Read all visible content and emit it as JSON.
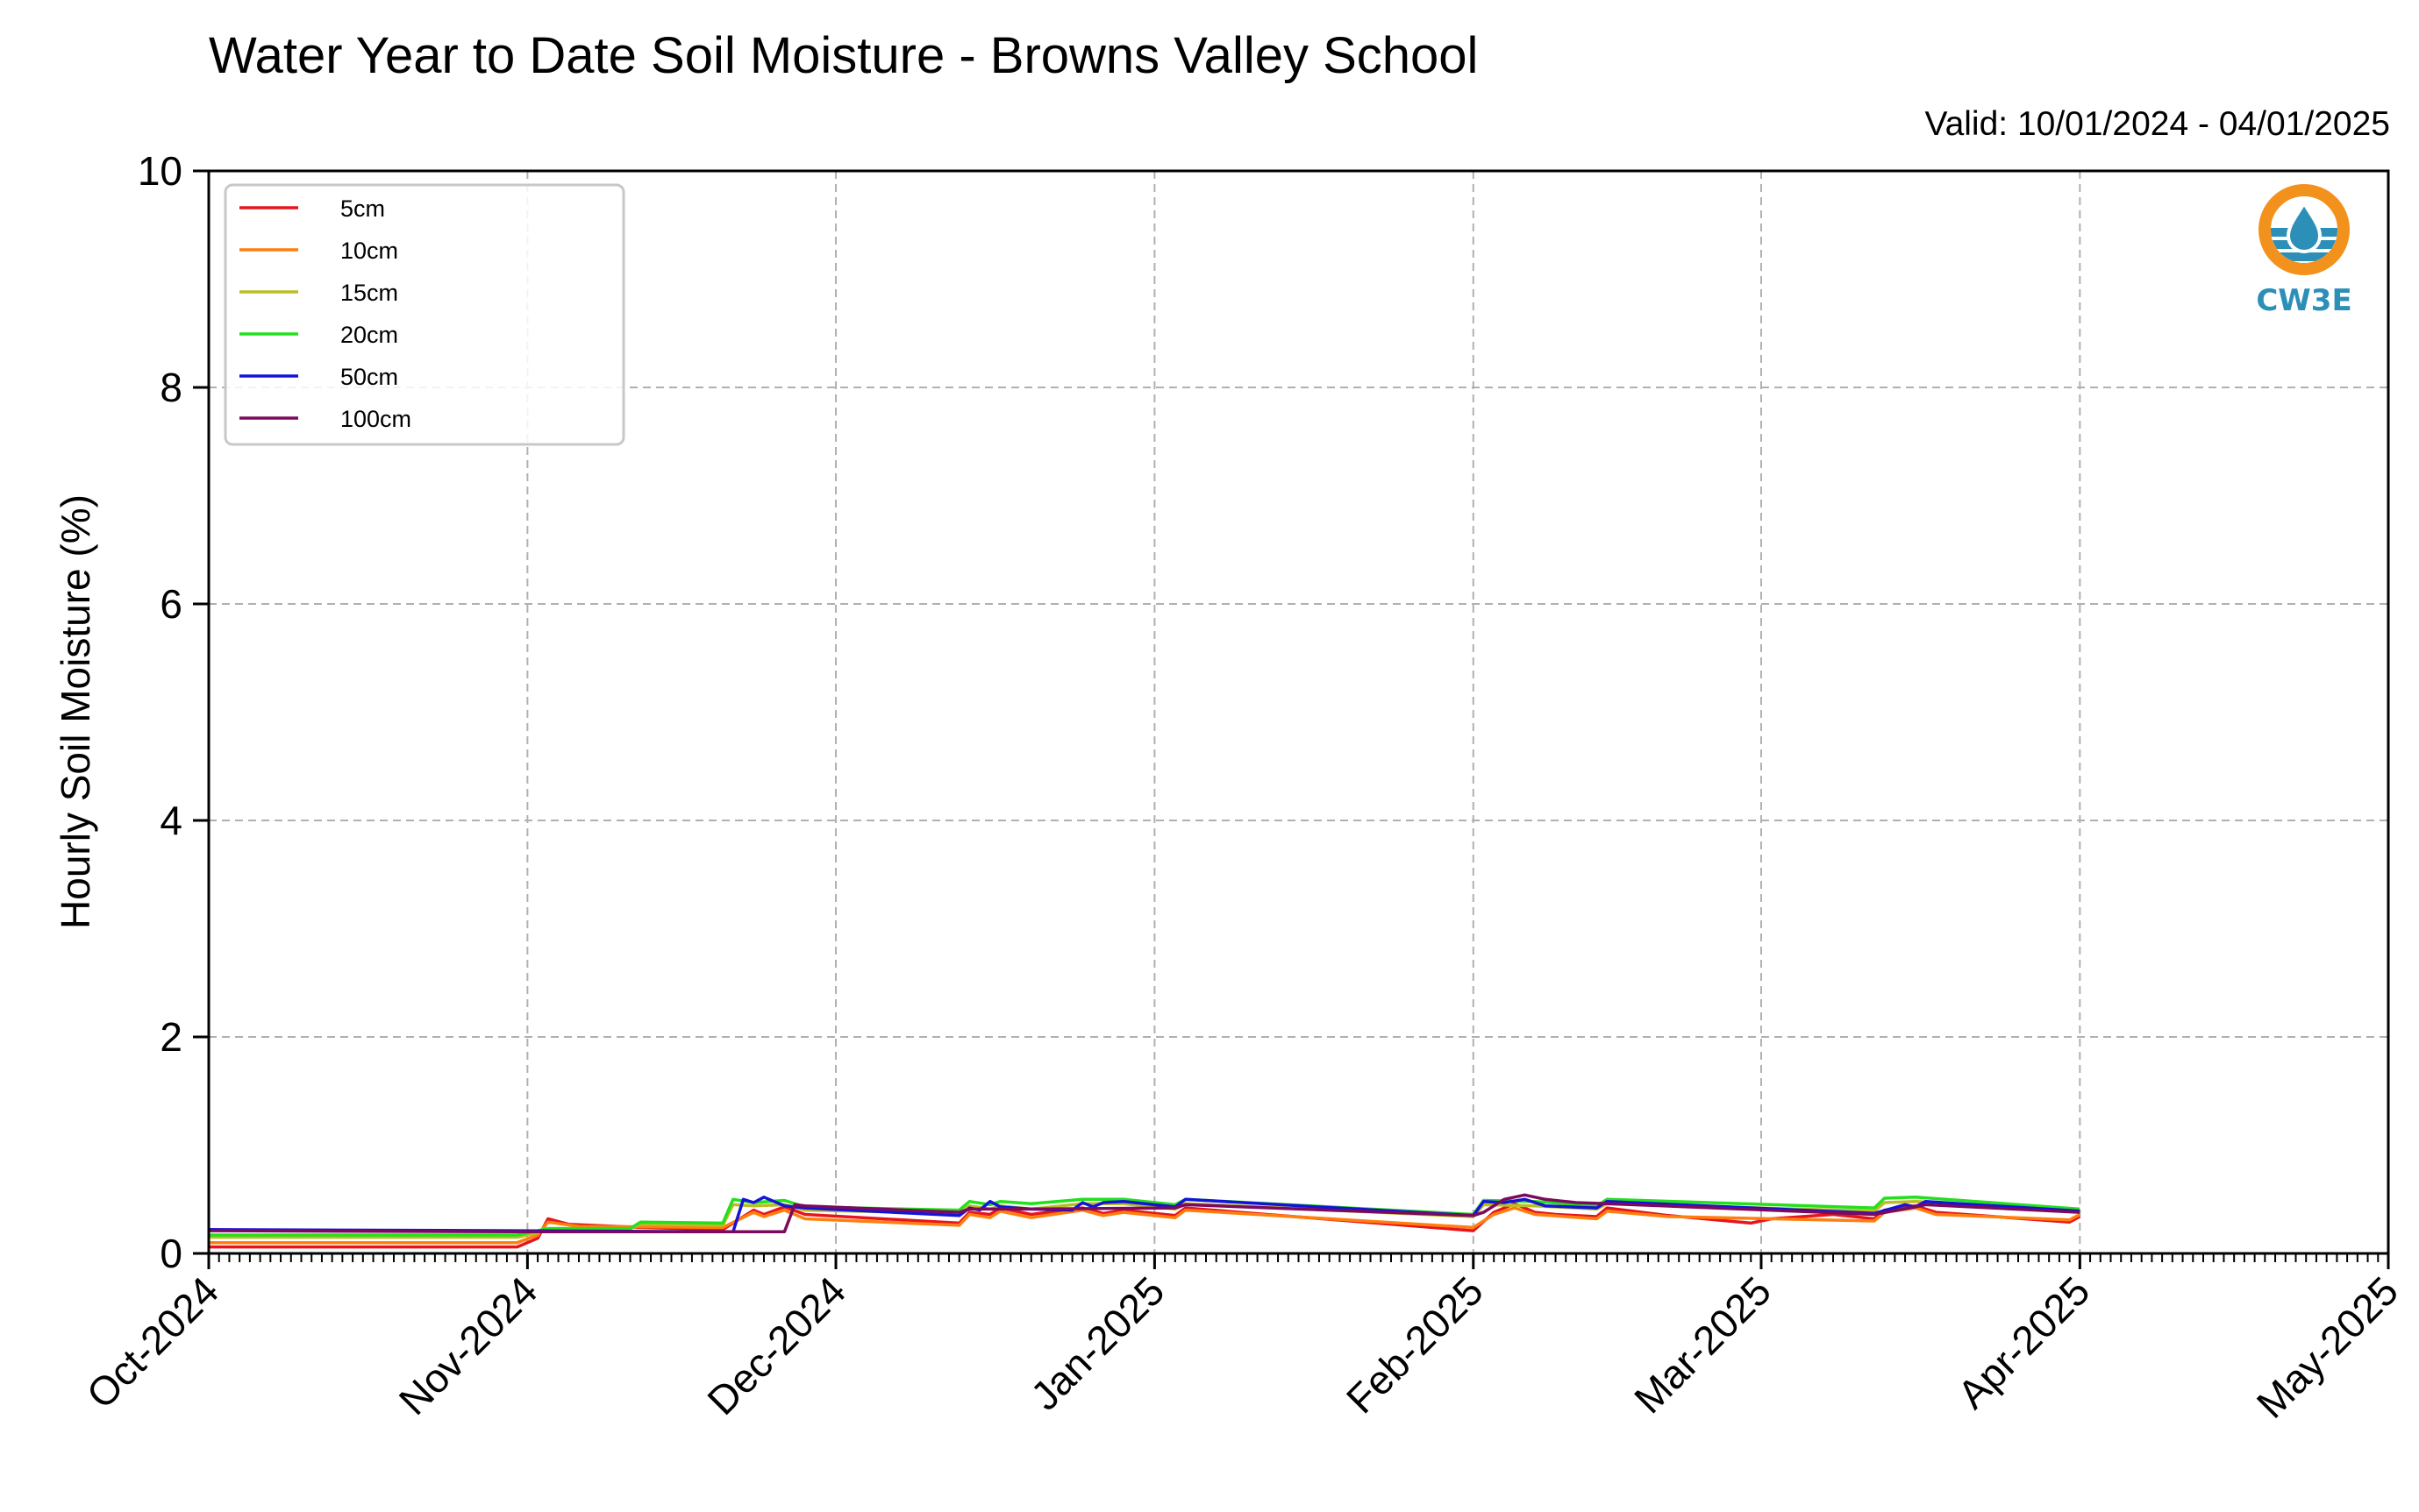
{
  "chart_data": {
    "type": "line",
    "title": "Water Year to Date Soil Moisture - Browns Valley School",
    "subtitle": "Valid: 10/01/2024 - 04/01/2025",
    "xlabel": "",
    "ylabel": "Hourly Soil Moisture (%)",
    "ylim": [
      0,
      10
    ],
    "yticks": [
      "0",
      "2",
      "4",
      "6",
      "8",
      "10"
    ],
    "xlim": [
      "2024-10-01",
      "2025-05-01"
    ],
    "xticks": [
      {
        "date": "2024-10-01",
        "label": "Oct-2024"
      },
      {
        "date": "2024-11-01",
        "label": "Nov-2024"
      },
      {
        "date": "2024-12-01",
        "label": "Dec-2024"
      },
      {
        "date": "2025-01-01",
        "label": "Jan-2025"
      },
      {
        "date": "2025-02-01",
        "label": "Feb-2025"
      },
      {
        "date": "2025-03-01",
        "label": "Mar-2025"
      },
      {
        "date": "2025-04-01",
        "label": "Apr-2025"
      },
      {
        "date": "2025-05-01",
        "label": "May-2025"
      }
    ],
    "grid": true,
    "legend_position": "top-left",
    "logo_text": "CW3E",
    "series": [
      {
        "name": "5cm",
        "color": "#e8141c",
        "points": [
          [
            "2024-10-01",
            0.06
          ],
          [
            "2024-10-31",
            0.06
          ],
          [
            "2024-11-02",
            0.14
          ],
          [
            "2024-11-03",
            0.32
          ],
          [
            "2024-11-05",
            0.27
          ],
          [
            "2024-11-12",
            0.24
          ],
          [
            "2024-11-20",
            0.22
          ],
          [
            "2024-11-23",
            0.4
          ],
          [
            "2024-11-24",
            0.36
          ],
          [
            "2024-11-26",
            0.43
          ],
          [
            "2024-11-28",
            0.36
          ],
          [
            "2024-12-13",
            0.28
          ],
          [
            "2024-12-14",
            0.38
          ],
          [
            "2024-12-16",
            0.36
          ],
          [
            "2024-12-17",
            0.42
          ],
          [
            "2024-12-20",
            0.36
          ],
          [
            "2024-12-25",
            0.42
          ],
          [
            "2024-12-27",
            0.37
          ],
          [
            "2024-12-29",
            0.4
          ],
          [
            "2025-01-03",
            0.35
          ],
          [
            "2025-01-04",
            0.42
          ],
          [
            "2025-02-01",
            0.21
          ],
          [
            "2025-02-03",
            0.38
          ],
          [
            "2025-02-05",
            0.46
          ],
          [
            "2025-02-07",
            0.38
          ],
          [
            "2025-02-09",
            0.36
          ],
          [
            "2025-02-13",
            0.34
          ],
          [
            "2025-02-14",
            0.42
          ],
          [
            "2025-02-20",
            0.35
          ],
          [
            "2025-02-28",
            0.28
          ],
          [
            "2025-03-02",
            0.32
          ],
          [
            "2025-03-08",
            0.36
          ],
          [
            "2025-03-12",
            0.32
          ],
          [
            "2025-03-13",
            0.4
          ],
          [
            "2025-03-16",
            0.44
          ],
          [
            "2025-03-18",
            0.38
          ],
          [
            "2025-03-31",
            0.29
          ],
          [
            "2025-04-01",
            0.34
          ]
        ]
      },
      {
        "name": "10cm",
        "color": "#ff7f0e",
        "points": [
          [
            "2024-10-01",
            0.1
          ],
          [
            "2024-10-31",
            0.1
          ],
          [
            "2024-11-02",
            0.17
          ],
          [
            "2024-11-03",
            0.29
          ],
          [
            "2024-11-06",
            0.25
          ],
          [
            "2024-11-20",
            0.24
          ],
          [
            "2024-11-23",
            0.38
          ],
          [
            "2024-11-24",
            0.34
          ],
          [
            "2024-11-26",
            0.4
          ],
          [
            "2024-11-28",
            0.32
          ],
          [
            "2024-12-13",
            0.26
          ],
          [
            "2024-12-14",
            0.36
          ],
          [
            "2024-12-16",
            0.33
          ],
          [
            "2024-12-17",
            0.39
          ],
          [
            "2024-12-20",
            0.33
          ],
          [
            "2024-12-25",
            0.4
          ],
          [
            "2024-12-27",
            0.35
          ],
          [
            "2024-12-29",
            0.38
          ],
          [
            "2025-01-03",
            0.33
          ],
          [
            "2025-01-04",
            0.4
          ],
          [
            "2025-02-01",
            0.24
          ],
          [
            "2025-02-03",
            0.36
          ],
          [
            "2025-02-05",
            0.42
          ],
          [
            "2025-02-07",
            0.36
          ],
          [
            "2025-02-13",
            0.32
          ],
          [
            "2025-02-14",
            0.39
          ],
          [
            "2025-02-20",
            0.34
          ],
          [
            "2025-03-12",
            0.3
          ],
          [
            "2025-03-13",
            0.38
          ],
          [
            "2025-03-16",
            0.42
          ],
          [
            "2025-03-18",
            0.36
          ],
          [
            "2025-03-31",
            0.31
          ],
          [
            "2025-04-01",
            0.36
          ]
        ]
      },
      {
        "name": "15cm",
        "color": "#bcbd22",
        "points": [
          [
            "2024-10-01",
            0.15
          ],
          [
            "2024-10-31",
            0.15
          ],
          [
            "2024-11-02",
            0.19
          ],
          [
            "2024-11-03",
            0.23
          ],
          [
            "2024-11-11",
            0.23
          ],
          [
            "2024-11-12",
            0.27
          ],
          [
            "2024-11-20",
            0.26
          ],
          [
            "2024-11-21",
            0.45
          ],
          [
            "2024-11-23",
            0.44
          ],
          [
            "2024-11-26",
            0.45
          ],
          [
            "2024-11-28",
            0.4
          ],
          [
            "2024-12-13",
            0.37
          ],
          [
            "2024-12-14",
            0.44
          ],
          [
            "2024-12-16",
            0.41
          ],
          [
            "2024-12-17",
            0.44
          ],
          [
            "2024-12-20",
            0.41
          ],
          [
            "2024-12-25",
            0.46
          ],
          [
            "2024-12-29",
            0.46
          ],
          [
            "2025-01-03",
            0.41
          ],
          [
            "2025-01-04",
            0.46
          ],
          [
            "2025-02-01",
            0.34
          ],
          [
            "2025-02-02",
            0.45
          ],
          [
            "2025-02-07",
            0.44
          ],
          [
            "2025-02-13",
            0.41
          ],
          [
            "2025-02-14",
            0.46
          ],
          [
            "2025-03-12",
            0.39
          ],
          [
            "2025-03-13",
            0.47
          ],
          [
            "2025-03-16",
            0.48
          ],
          [
            "2025-04-01",
            0.39
          ]
        ]
      },
      {
        "name": "20cm",
        "color": "#22e01c",
        "points": [
          [
            "2024-10-01",
            0.17
          ],
          [
            "2024-10-31",
            0.17
          ],
          [
            "2024-11-02",
            0.21
          ],
          [
            "2024-11-03",
            0.23
          ],
          [
            "2024-11-11",
            0.23
          ],
          [
            "2024-11-12",
            0.29
          ],
          [
            "2024-11-20",
            0.28
          ],
          [
            "2024-11-21",
            0.5
          ],
          [
            "2024-11-23",
            0.47
          ],
          [
            "2024-11-26",
            0.49
          ],
          [
            "2024-11-28",
            0.43
          ],
          [
            "2024-12-13",
            0.4
          ],
          [
            "2024-12-14",
            0.48
          ],
          [
            "2024-12-16",
            0.45
          ],
          [
            "2024-12-17",
            0.48
          ],
          [
            "2024-12-20",
            0.46
          ],
          [
            "2024-12-25",
            0.5
          ],
          [
            "2024-12-29",
            0.5
          ],
          [
            "2025-01-03",
            0.45
          ],
          [
            "2025-01-04",
            0.5
          ],
          [
            "2025-02-01",
            0.36
          ],
          [
            "2025-02-02",
            0.49
          ],
          [
            "2025-02-07",
            0.48
          ],
          [
            "2025-02-13",
            0.44
          ],
          [
            "2025-02-14",
            0.5
          ],
          [
            "2025-03-12",
            0.42
          ],
          [
            "2025-03-13",
            0.51
          ],
          [
            "2025-03-16",
            0.52
          ],
          [
            "2025-04-01",
            0.41
          ]
        ]
      },
      {
        "name": "50cm",
        "color": "#1414d8",
        "points": [
          [
            "2024-10-01",
            0.22
          ],
          [
            "2024-10-31",
            0.21
          ],
          [
            "2024-11-21",
            0.2
          ],
          [
            "2024-11-22",
            0.5
          ],
          [
            "2024-11-23",
            0.47
          ],
          [
            "2024-11-24",
            0.52
          ],
          [
            "2024-11-26",
            0.44
          ],
          [
            "2024-11-28",
            0.42
          ],
          [
            "2024-12-13",
            0.35
          ],
          [
            "2024-12-14",
            0.42
          ],
          [
            "2024-12-15",
            0.4
          ],
          [
            "2024-12-16",
            0.48
          ],
          [
            "2024-12-17",
            0.43
          ],
          [
            "2024-12-20",
            0.41
          ],
          [
            "2024-12-24",
            0.4
          ],
          [
            "2024-12-25",
            0.47
          ],
          [
            "2024-12-26",
            0.43
          ],
          [
            "2024-12-27",
            0.47
          ],
          [
            "2024-12-29",
            0.48
          ],
          [
            "2025-01-03",
            0.43
          ],
          [
            "2025-01-04",
            0.5
          ],
          [
            "2025-02-01",
            0.35
          ],
          [
            "2025-02-02",
            0.48
          ],
          [
            "2025-02-04",
            0.47
          ],
          [
            "2025-02-06",
            0.5
          ],
          [
            "2025-02-08",
            0.44
          ],
          [
            "2025-02-13",
            0.42
          ],
          [
            "2025-02-14",
            0.48
          ],
          [
            "2025-03-12",
            0.37
          ],
          [
            "2025-03-15",
            0.45
          ],
          [
            "2025-03-16",
            0.43
          ],
          [
            "2025-03-17",
            0.48
          ],
          [
            "2025-04-01",
            0.39
          ]
        ]
      },
      {
        "name": "100cm",
        "color": "#7b0a5e",
        "points": [
          [
            "2024-10-01",
            0.21
          ],
          [
            "2024-10-31",
            0.2
          ],
          [
            "2024-11-26",
            0.2
          ],
          [
            "2024-11-27",
            0.45
          ],
          [
            "2024-11-28",
            0.44
          ],
          [
            "2024-12-13",
            0.38
          ],
          [
            "2024-12-14",
            0.41
          ],
          [
            "2024-12-20",
            0.41
          ],
          [
            "2025-01-03",
            0.42
          ],
          [
            "2025-01-04",
            0.45
          ],
          [
            "2025-02-01",
            0.35
          ],
          [
            "2025-02-02",
            0.38
          ],
          [
            "2025-02-04",
            0.5
          ],
          [
            "2025-02-06",
            0.54
          ],
          [
            "2025-02-08",
            0.5
          ],
          [
            "2025-02-11",
            0.47
          ],
          [
            "2025-02-14",
            0.46
          ],
          [
            "2025-03-12",
            0.36
          ],
          [
            "2025-03-16",
            0.43
          ],
          [
            "2025-03-17",
            0.45
          ],
          [
            "2025-04-01",
            0.38
          ]
        ]
      }
    ]
  }
}
